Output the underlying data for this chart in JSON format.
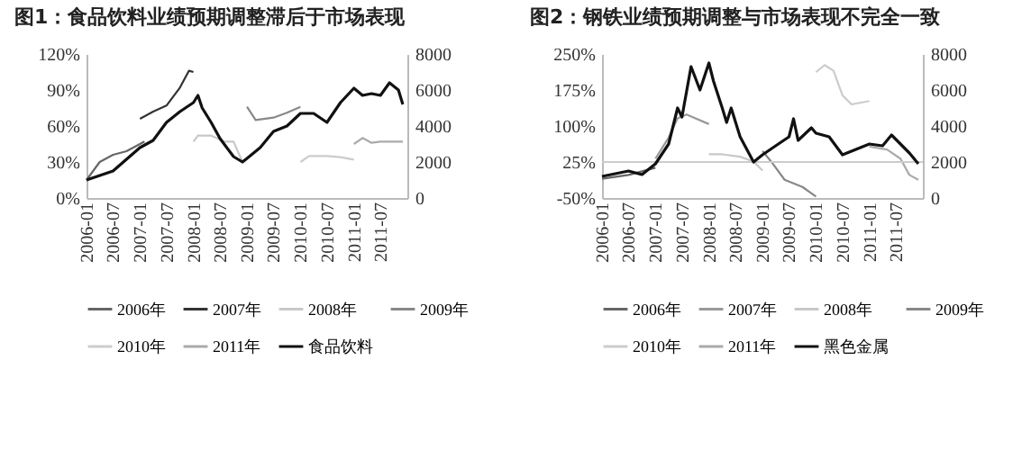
{
  "chart_data": [
    {
      "type": "line",
      "title": "图1：食品饮料业绩预期调整滞后于市场表现",
      "legend": "bottom",
      "xlim": [
        "2006-01",
        "2012-01"
      ],
      "xticks": [
        "2006-01",
        "2006-07",
        "2007-01",
        "2007-07",
        "2008-01",
        "2008-07",
        "2009-01",
        "2009-07",
        "2010-01",
        "2010-07",
        "2011-01",
        "2011-07"
      ],
      "ylim": [
        0,
        120
      ],
      "yticks": [
        {
          "value": 0,
          "label": "0%"
        },
        {
          "value": 30,
          "label": "30%"
        },
        {
          "value": 60,
          "label": "60%"
        },
        {
          "value": 90,
          "label": "90%"
        },
        {
          "value": 120,
          "label": "120%"
        }
      ],
      "y2lim": [
        0,
        8000
      ],
      "y2ticks": [
        0,
        2000,
        4000,
        6000,
        8000
      ],
      "series": [
        {
          "name": "2006年",
          "color": "#666666",
          "x": [
            "2006-01",
            "2006-04",
            "2006-07",
            "2006-10",
            "2007-01",
            "2007-02"
          ],
          "values": [
            15,
            30,
            36,
            39,
            45,
            47
          ]
        },
        {
          "name": "2007年",
          "color": "#333333",
          "x": [
            "2007-01",
            "2007-04",
            "2007-07",
            "2007-10",
            "2007-12",
            "2008-01"
          ],
          "values": [
            66,
            72,
            77,
            92,
            106,
            105
          ]
        },
        {
          "name": "2008年",
          "color": "#c8c8c8",
          "x": [
            "2008-01",
            "2008-02",
            "2008-05",
            "2008-08",
            "2008-10",
            "2008-12"
          ],
          "values": [
            47,
            52,
            52,
            47,
            47,
            30
          ]
        },
        {
          "name": "2009年",
          "color": "#888888",
          "x": [
            "2009-01",
            "2009-03",
            "2009-07",
            "2009-10",
            "2010-01"
          ],
          "values": [
            76,
            65,
            67,
            71,
            76
          ]
        },
        {
          "name": "2010年",
          "color": "#cccccc",
          "x": [
            "2010-01",
            "2010-03",
            "2010-07",
            "2010-10",
            "2011-01"
          ],
          "values": [
            30,
            35,
            35,
            34,
            32
          ]
        },
        {
          "name": "2011年",
          "color": "#aaaaaa",
          "x": [
            "2011-01",
            "2011-03",
            "2011-05",
            "2011-07",
            "2011-12"
          ],
          "values": [
            45,
            50,
            46,
            47,
            47
          ]
        },
        {
          "name": "食品饮料",
          "color": "#111111",
          "axis": "y2",
          "x": [
            "2006-01",
            "2006-07",
            "2007-01",
            "2007-04",
            "2007-07",
            "2007-10",
            "2008-01",
            "2008-02",
            "2008-03",
            "2008-05",
            "2008-07",
            "2008-10",
            "2008-12",
            "2009-01",
            "2009-04",
            "2009-07",
            "2009-10",
            "2010-01",
            "2010-04",
            "2010-07",
            "2010-10",
            "2011-01",
            "2011-03",
            "2011-05",
            "2011-07",
            "2011-09",
            "2011-11",
            "2011-12"
          ],
          "values": [
            1000,
            1500,
            2800,
            3200,
            4200,
            4800,
            5300,
            5700,
            5000,
            4200,
            3300,
            2300,
            2000,
            2200,
            2800,
            3700,
            4000,
            4700,
            4700,
            4200,
            5300,
            6100,
            5700,
            5800,
            5700,
            6400,
            6000,
            5200
          ]
        }
      ]
    },
    {
      "type": "line",
      "title": "图2：钢铁业绩预期调整与市场表现不完全一致",
      "legend": "bottom",
      "xlim": [
        "2006-01",
        "2012-01"
      ],
      "xticks": [
        "2006-01",
        "2006-07",
        "2007-01",
        "2007-07",
        "2008-01",
        "2008-07",
        "2009-01",
        "2009-07",
        "2010-01",
        "2010-07",
        "2011-01",
        "2011-07"
      ],
      "ylim": [
        -50,
        250
      ],
      "yticks": [
        {
          "value": -50,
          "label": "-50%"
        },
        {
          "value": 25,
          "label": "25%"
        },
        {
          "value": 100,
          "label": "100%"
        },
        {
          "value": 175,
          "label": "175%"
        },
        {
          "value": 250,
          "label": "250%"
        }
      ],
      "y2lim": [
        0,
        8000
      ],
      "y2ticks": [
        0,
        2000,
        4000,
        6000,
        8000
      ],
      "ref_lines": [
        {
          "axis": "y",
          "value": 25,
          "color": "#cccccc"
        }
      ],
      "series": [
        {
          "name": "2006年",
          "color": "#666666",
          "x": [
            "2006-01",
            "2006-07",
            "2007-01"
          ],
          "values": [
            -10,
            -2,
            13
          ]
        },
        {
          "name": "2007年",
          "color": "#999999",
          "x": [
            "2007-01",
            "2007-04",
            "2007-06",
            "2007-08",
            "2008-01"
          ],
          "values": [
            32,
            76,
            116,
            124,
            104
          ]
        },
        {
          "name": "2008年",
          "color": "#c8c8c8",
          "x": [
            "2008-01",
            "2008-04",
            "2008-08",
            "2008-11",
            "2009-01"
          ],
          "values": [
            41,
            41,
            36,
            26,
            7
          ]
        },
        {
          "name": "2009年",
          "color": "#888888",
          "x": [
            "2009-01",
            "2009-03",
            "2009-06",
            "2009-10",
            "2010-01"
          ],
          "values": [
            48,
            26,
            -12,
            -27,
            -47
          ]
        },
        {
          "name": "2010年",
          "color": "#cccccc",
          "x": [
            "2010-01",
            "2010-03",
            "2010-05",
            "2010-07",
            "2010-09",
            "2011-01"
          ],
          "values": [
            212,
            227,
            215,
            164,
            145,
            152
          ]
        },
        {
          "name": "2011年",
          "color": "#aaaaaa",
          "x": [
            "2011-01",
            "2011-05",
            "2011-08",
            "2011-10",
            "2011-12"
          ],
          "values": [
            57,
            51,
            32,
            -2,
            -12
          ]
        },
        {
          "name": "黑色金属",
          "color": "#111111",
          "axis": "y2",
          "x": [
            "2006-01",
            "2006-07",
            "2006-10",
            "2007-01",
            "2007-04",
            "2007-06",
            "2007-07",
            "2007-09",
            "2007-11",
            "2008-01",
            "2008-02",
            "2008-04",
            "2008-05",
            "2008-06",
            "2008-08",
            "2008-11",
            "2009-01",
            "2009-04",
            "2009-07",
            "2009-08",
            "2009-09",
            "2009-12",
            "2010-01",
            "2010-04",
            "2010-07",
            "2010-10",
            "2011-01",
            "2011-04",
            "2011-06",
            "2011-08",
            "2011-10",
            "2011-12"
          ],
          "values": [
            1200,
            1500,
            1300,
            1900,
            3000,
            5000,
            4500,
            7300,
            6000,
            7500,
            6500,
            5000,
            4200,
            5000,
            3400,
            2000,
            2400,
            2900,
            3400,
            4400,
            3200,
            3900,
            3600,
            3400,
            2400,
            2700,
            3000,
            2900,
            3500,
            3000,
            2500,
            1900
          ]
        }
      ]
    }
  ]
}
